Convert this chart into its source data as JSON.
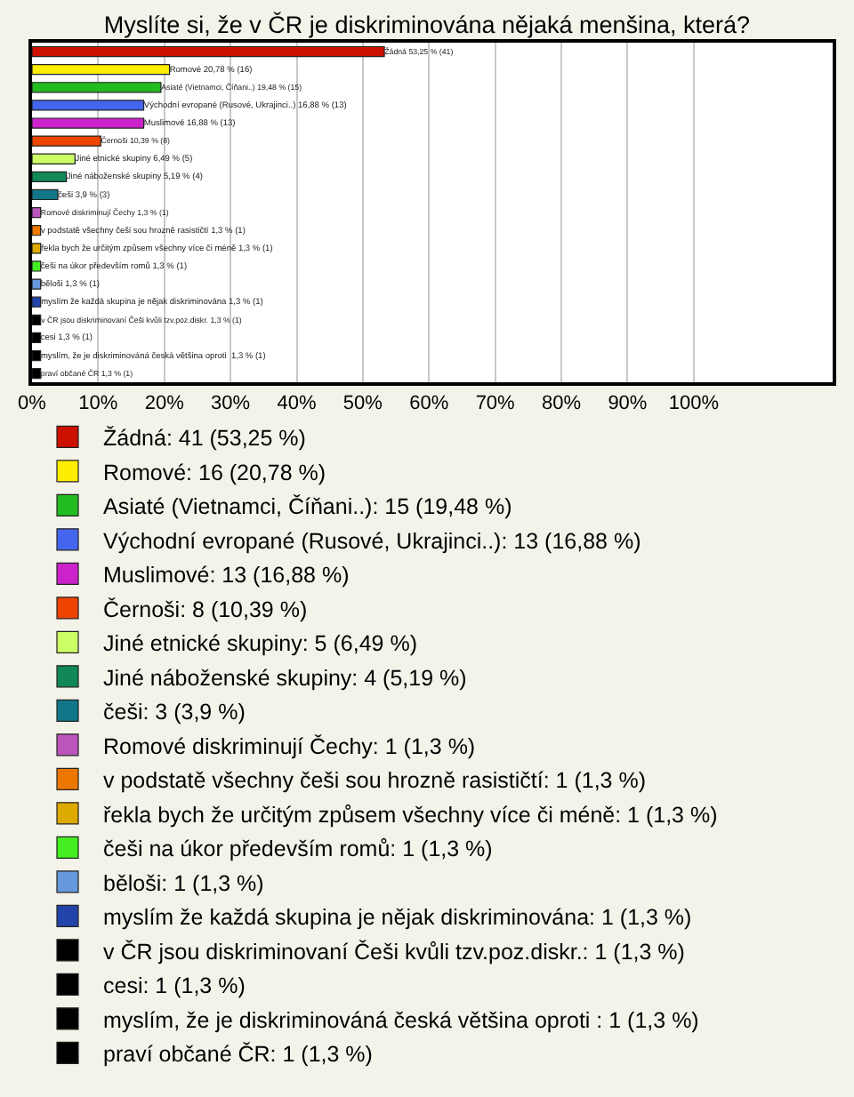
{
  "chart_data": {
    "type": "bar",
    "orientation": "horizontal",
    "title": "Myslíte si, že v ČR je diskriminována nějaká menšina, která?",
    "categories": [
      null,
      null,
      null,
      null,
      null,
      null,
      null,
      null,
      null,
      null,
      null,
      null,
      null,
      null,
      null,
      null,
      null,
      null,
      null
    ],
    "series": [
      {
        "name": "Žádná: 41 (53,25 %)",
        "color": "#cc1100",
        "values": [
          53.25,
          null,
          null,
          null,
          null,
          null,
          null,
          null,
          null,
          null,
          null,
          null,
          null,
          null,
          null,
          null,
          null,
          null,
          null
        ],
        "value_labels": [
          "Žádná 53,25 % (41)",
          null,
          null,
          null,
          null,
          null,
          null,
          null,
          null,
          null,
          null,
          null,
          null,
          null,
          null,
          null,
          null,
          null,
          null
        ]
      },
      {
        "name": "Romové: 16 (20,78 %)",
        "color": "#ffee00",
        "values": [
          null,
          20.78,
          null,
          null,
          null,
          null,
          null,
          null,
          null,
          null,
          null,
          null,
          null,
          null,
          null,
          null,
          null,
          null,
          null
        ],
        "value_labels": [
          null,
          "Romové 20,78 % (16)",
          null,
          null,
          null,
          null,
          null,
          null,
          null,
          null,
          null,
          null,
          null,
          null,
          null,
          null,
          null,
          null,
          null
        ]
      },
      {
        "name": "Asiaté (Vietnamci, Číňani..): 15 (19,48 %)",
        "color": "#22bb22",
        "values": [
          null,
          null,
          19.48,
          null,
          null,
          null,
          null,
          null,
          null,
          null,
          null,
          null,
          null,
          null,
          null,
          null,
          null,
          null,
          null
        ],
        "value_labels": [
          null,
          null,
          "Asiaté (Vietnamci, Číňani..) 19,48 % (15)",
          null,
          null,
          null,
          null,
          null,
          null,
          null,
          null,
          null,
          null,
          null,
          null,
          null,
          null,
          null,
          null
        ]
      },
      {
        "name": "Východní evropané (Rusové, Ukrajinci..): 13 (16,88 %)",
        "color": "#4466ee",
        "values": [
          null,
          null,
          null,
          16.88,
          null,
          null,
          null,
          null,
          null,
          null,
          null,
          null,
          null,
          null,
          null,
          null,
          null,
          null,
          null
        ],
        "value_labels": [
          null,
          null,
          null,
          "Východní evropané (Rusové, Ukrajinci..) 16,88 % (13)",
          null,
          null,
          null,
          null,
          null,
          null,
          null,
          null,
          null,
          null,
          null,
          null,
          null,
          null,
          null
        ]
      },
      {
        "name": "Muslimové: 13 (16,88 %)",
        "color": "#cc22cc",
        "values": [
          null,
          null,
          null,
          null,
          16.88,
          null,
          null,
          null,
          null,
          null,
          null,
          null,
          null,
          null,
          null,
          null,
          null,
          null,
          null
        ],
        "value_labels": [
          null,
          null,
          null,
          null,
          "Muslimové 16,88 % (13)",
          null,
          null,
          null,
          null,
          null,
          null,
          null,
          null,
          null,
          null,
          null,
          null,
          null,
          null
        ]
      },
      {
        "name": "Černoši: 8 (10,39 %)",
        "color": "#ee4400",
        "values": [
          null,
          null,
          null,
          null,
          null,
          10.39,
          null,
          null,
          null,
          null,
          null,
          null,
          null,
          null,
          null,
          null,
          null,
          null,
          null
        ],
        "value_labels": [
          null,
          null,
          null,
          null,
          null,
          "Černoši 10,39 % (8)",
          null,
          null,
          null,
          null,
          null,
          null,
          null,
          null,
          null,
          null,
          null,
          null,
          null
        ]
      },
      {
        "name": "Jiné etnické skupiny: 5 (6,49 %)",
        "color": "#ccff66",
        "values": [
          null,
          null,
          null,
          null,
          null,
          null,
          6.49,
          null,
          null,
          null,
          null,
          null,
          null,
          null,
          null,
          null,
          null,
          null,
          null
        ],
        "value_labels": [
          null,
          null,
          null,
          null,
          null,
          null,
          "Jiné etnické skupiny 6,49 % (5)",
          null,
          null,
          null,
          null,
          null,
          null,
          null,
          null,
          null,
          null,
          null,
          null
        ]
      },
      {
        "name": "Jiné náboženské skupiny: 4 (5,19 %)",
        "color": "#118855",
        "values": [
          null,
          null,
          null,
          null,
          null,
          null,
          null,
          5.19,
          null,
          null,
          null,
          null,
          null,
          null,
          null,
          null,
          null,
          null,
          null
        ],
        "value_labels": [
          null,
          null,
          null,
          null,
          null,
          null,
          null,
          "Jiné náboženské skupiny 5,19 % (4)",
          null,
          null,
          null,
          null,
          null,
          null,
          null,
          null,
          null,
          null,
          null
        ]
      },
      {
        "name": "češi: 3 (3,9 %)",
        "color": "#117788",
        "values": [
          null,
          null,
          null,
          null,
          null,
          null,
          null,
          null,
          3.9,
          null,
          null,
          null,
          null,
          null,
          null,
          null,
          null,
          null,
          null
        ],
        "value_labels": [
          null,
          null,
          null,
          null,
          null,
          null,
          null,
          null,
          "češi 3,9 % (3)",
          null,
          null,
          null,
          null,
          null,
          null,
          null,
          null,
          null,
          null
        ]
      },
      {
        "name": "Romové diskriminují Čechy: 1 (1,3 %)",
        "color": "#bb55bb",
        "values": [
          null,
          null,
          null,
          null,
          null,
          null,
          null,
          null,
          null,
          1.3,
          null,
          null,
          null,
          null,
          null,
          null,
          null,
          null,
          null
        ],
        "value_labels": [
          null,
          null,
          null,
          null,
          null,
          null,
          null,
          null,
          null,
          "Romové diskriminují Čechy 1,3 % (1)",
          null,
          null,
          null,
          null,
          null,
          null,
          null,
          null,
          null
        ]
      },
      {
        "name": "v podstatě všechny češi sou hrozně rasističtí: 1 (1,3 %)",
        "color": "#ee7700",
        "values": [
          null,
          null,
          null,
          null,
          null,
          null,
          null,
          null,
          null,
          null,
          1.3,
          null,
          null,
          null,
          null,
          null,
          null,
          null,
          null
        ],
        "value_labels": [
          null,
          null,
          null,
          null,
          null,
          null,
          null,
          null,
          null,
          null,
          "v podstatě všechny češi sou hrozně rasističtí 1,3 % (1)",
          null,
          null,
          null,
          null,
          null,
          null,
          null,
          null
        ]
      },
      {
        "name": "řekla bych že určitým způsem všechny více či méně: 1 (1,3 %)",
        "color": "#ddaa00",
        "values": [
          null,
          null,
          null,
          null,
          null,
          null,
          null,
          null,
          null,
          null,
          null,
          1.3,
          null,
          null,
          null,
          null,
          null,
          null,
          null
        ],
        "value_labels": [
          null,
          null,
          null,
          null,
          null,
          null,
          null,
          null,
          null,
          null,
          null,
          "řekla bych že určitým způsem všechny více či méně 1,3 % (1)",
          null,
          null,
          null,
          null,
          null,
          null,
          null
        ]
      },
      {
        "name": "češi na úkor především romů: 1 (1,3 %)",
        "color": "#44ee22",
        "values": [
          null,
          null,
          null,
          null,
          null,
          null,
          null,
          null,
          null,
          null,
          null,
          null,
          1.3,
          null,
          null,
          null,
          null,
          null,
          null
        ],
        "value_labels": [
          null,
          null,
          null,
          null,
          null,
          null,
          null,
          null,
          null,
          null,
          null,
          null,
          "češi na úkor především romů 1,3 % (1)",
          null,
          null,
          null,
          null,
          null,
          null
        ]
      },
      {
        "name": "běloši: 1 (1,3 %)",
        "color": "#6699dd",
        "values": [
          null,
          null,
          null,
          null,
          null,
          null,
          null,
          null,
          null,
          null,
          null,
          null,
          null,
          1.3,
          null,
          null,
          null,
          null,
          null
        ],
        "value_labels": [
          null,
          null,
          null,
          null,
          null,
          null,
          null,
          null,
          null,
          null,
          null,
          null,
          null,
          "běloši 1,3 % (1)",
          null,
          null,
          null,
          null,
          null
        ]
      },
      {
        "name": "myslím že každá skupina je nějak diskriminována: 1 (1,3 %)",
        "color": "#2244aa",
        "values": [
          null,
          null,
          null,
          null,
          null,
          null,
          null,
          null,
          null,
          null,
          null,
          null,
          null,
          null,
          1.3,
          null,
          null,
          null,
          null
        ],
        "value_labels": [
          null,
          null,
          null,
          null,
          null,
          null,
          null,
          null,
          null,
          null,
          null,
          null,
          null,
          null,
          "myslím že každá skupina je nějak diskriminována 1,3 % (1)",
          null,
          null,
          null,
          null
        ]
      },
      {
        "name": "v ČR jsou diskriminovaní Češi kvůli tzv.poz.diskr.: 1 (1,3 %)",
        "color": "#000000",
        "values": [
          null,
          null,
          null,
          null,
          null,
          null,
          null,
          null,
          null,
          null,
          null,
          null,
          null,
          null,
          null,
          1.3,
          null,
          null,
          null
        ],
        "value_labels": [
          null,
          null,
          null,
          null,
          null,
          null,
          null,
          null,
          null,
          null,
          null,
          null,
          null,
          null,
          null,
          "v ČR jsou diskriminovaní Češi kvůli tzv.poz.diskr. 1,3 % (1)",
          null,
          null,
          null
        ]
      },
      {
        "name": "cesi: 1 (1,3 %)",
        "color": "#000000",
        "values": [
          null,
          null,
          null,
          null,
          null,
          null,
          null,
          null,
          null,
          null,
          null,
          null,
          null,
          null,
          null,
          null,
          1.3,
          null,
          null
        ],
        "value_labels": [
          null,
          null,
          null,
          null,
          null,
          null,
          null,
          null,
          null,
          null,
          null,
          null,
          null,
          null,
          null,
          null,
          "cesi 1,3 % (1)",
          null,
          null
        ]
      },
      {
        "name": "myslím, že je diskriminováná česká většina oproti : 1 (1,3 %)",
        "color": "#000000",
        "values": [
          null,
          null,
          null,
          null,
          null,
          null,
          null,
          null,
          null,
          null,
          null,
          null,
          null,
          null,
          null,
          null,
          null,
          1.3,
          null
        ],
        "value_labels": [
          null,
          null,
          null,
          null,
          null,
          null,
          null,
          null,
          null,
          null,
          null,
          null,
          null,
          null,
          null,
          null,
          null,
          "myslím, že je diskriminováná česká většina oproti  1,3 % (1)",
          null
        ]
      },
      {
        "name": "praví občané ČR: 1 (1,3 %)",
        "color": "#000000",
        "values": [
          null,
          null,
          null,
          null,
          null,
          null,
          null,
          null,
          null,
          null,
          null,
          null,
          null,
          null,
          null,
          null,
          null,
          null,
          1.3
        ],
        "value_labels": [
          null,
          null,
          null,
          null,
          null,
          null,
          null,
          null,
          null,
          null,
          null,
          null,
          null,
          null,
          null,
          null,
          null,
          null,
          "praví občané ČR 1,3 % (1)"
        ]
      }
    ],
    "xlim": [
      0,
      121
    ],
    "xticks": [
      {
        "value": 0,
        "label": "0%"
      },
      {
        "value": 10,
        "label": "10%"
      },
      {
        "value": 20,
        "label": "20%"
      },
      {
        "value": 30,
        "label": "30%"
      },
      {
        "value": 40,
        "label": "40%"
      },
      {
        "value": 50,
        "label": "50%"
      },
      {
        "value": 60,
        "label": "60%"
      },
      {
        "value": 70,
        "label": "70%"
      },
      {
        "value": 80,
        "label": "80%"
      },
      {
        "value": 90,
        "label": "90%"
      },
      {
        "value": 100,
        "label": "100%"
      }
    ],
    "grid": "x",
    "legend": "bottom",
    "tick_labels": "x"
  }
}
